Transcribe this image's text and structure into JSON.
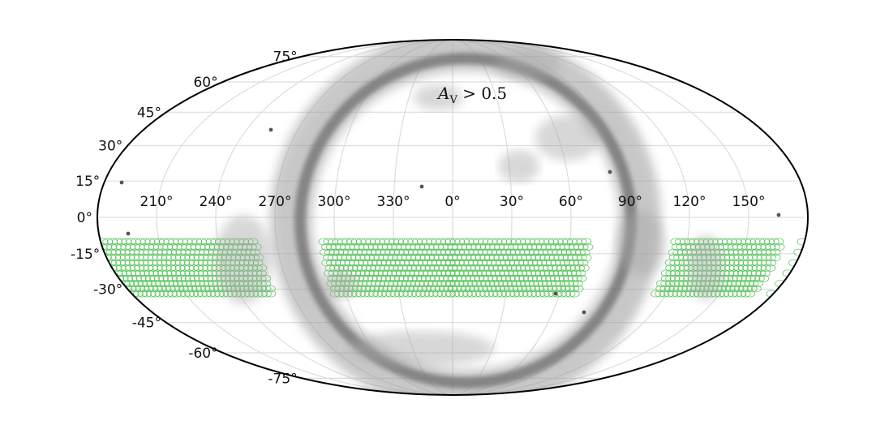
{
  "chart_data": {
    "type": "map",
    "projection": "mollweide",
    "annotation_main": "A",
    "annotation_sub": "V",
    "annotation_rest": " > 0.5",
    "lon_tick_labels": [
      "210°",
      "240°",
      "270°",
      "300°",
      "330°",
      "0°",
      "30°",
      "60°",
      "90°",
      "120°",
      "150°"
    ],
    "lon_tick_values": [
      210,
      240,
      270,
      300,
      330,
      0,
      30,
      60,
      90,
      120,
      150
    ],
    "lat_tick_labels": [
      "75°",
      "60°",
      "45°",
      "30°",
      "15°",
      "0°",
      "-15°",
      "-30°",
      "-45°",
      "-60°",
      "-75°"
    ],
    "lat_tick_values": [
      75,
      60,
      45,
      30,
      15,
      0,
      -15,
      -30,
      -45,
      -60,
      -75
    ],
    "grid": true,
    "colors": {
      "extinction": "#6e6e6e",
      "footprint": "#56c35b",
      "grid": "#dddddd",
      "outline": "#000000"
    },
    "footprint_lat_range": [
      -32,
      -10
    ],
    "footprint_lon_ranges": [
      [
        295,
        70
      ],
      [
        115,
        170
      ],
      [
        180,
        260
      ]
    ]
  }
}
